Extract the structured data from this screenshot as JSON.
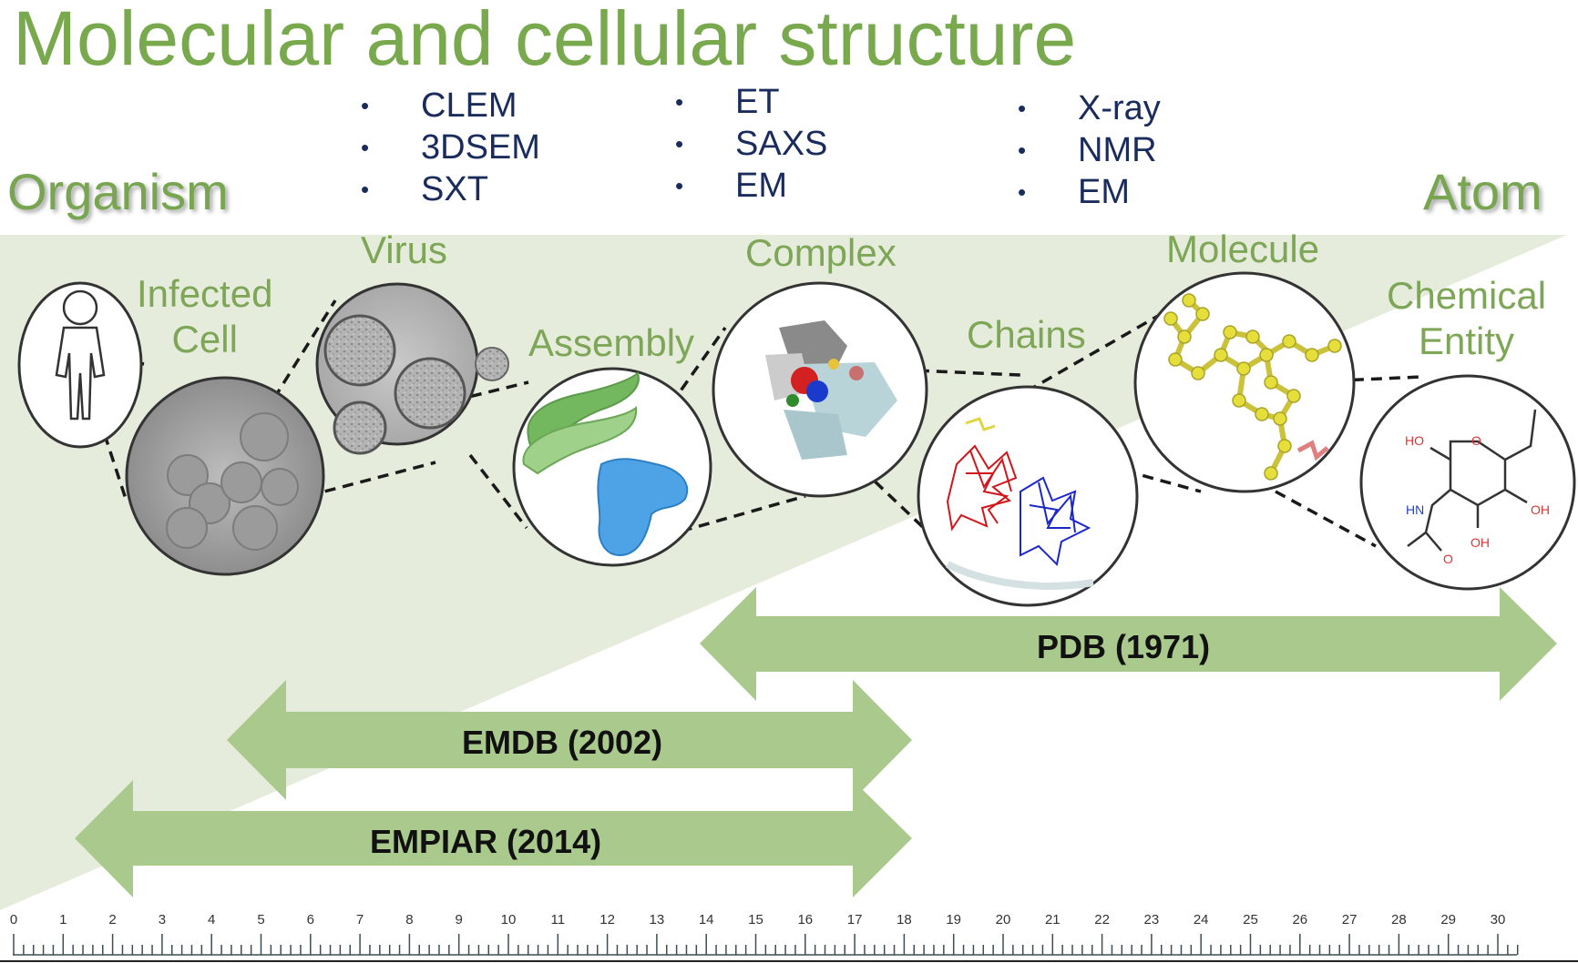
{
  "title": "Molecular and cellular structure",
  "scale_left": "Organism",
  "scale_right": "Atom",
  "techniques": [
    [
      "CLEM",
      "3DSEM",
      "SXT"
    ],
    [
      "ET",
      "SAXS",
      "EM"
    ],
    [
      "X-ray",
      "NMR",
      "EM"
    ]
  ],
  "levels": {
    "infected_cell": "Infected\nCell",
    "virus": "Virus",
    "assembly": "Assembly",
    "complex": "Complex",
    "chains": "Chains",
    "molecule": "Molecule",
    "chemical_entity": "Chemical\nEntity"
  },
  "archives": {
    "pdb": "PDB (1971)",
    "emdb": "EMDB (2002)",
    "empiar": "EMPIAR (2014)"
  },
  "molecule_labels": [
    "HO",
    "O",
    "HN",
    "OH",
    "OH",
    "O"
  ],
  "ruler_labels": [
    "0",
    "1",
    "2",
    "3",
    "4",
    "5",
    "6",
    "7",
    "8",
    "9",
    "10",
    "11",
    "12",
    "13",
    "14",
    "15",
    "16",
    "17",
    "18",
    "19",
    "20",
    "21",
    "22",
    "23",
    "24",
    "25",
    "26",
    "27",
    "28",
    "29",
    "30"
  ],
  "colors": {
    "title": "#79a94d",
    "arrow": "#a9c98d",
    "wedge": "#e6ecdc",
    "bullet_text": "#1a2c5b"
  }
}
